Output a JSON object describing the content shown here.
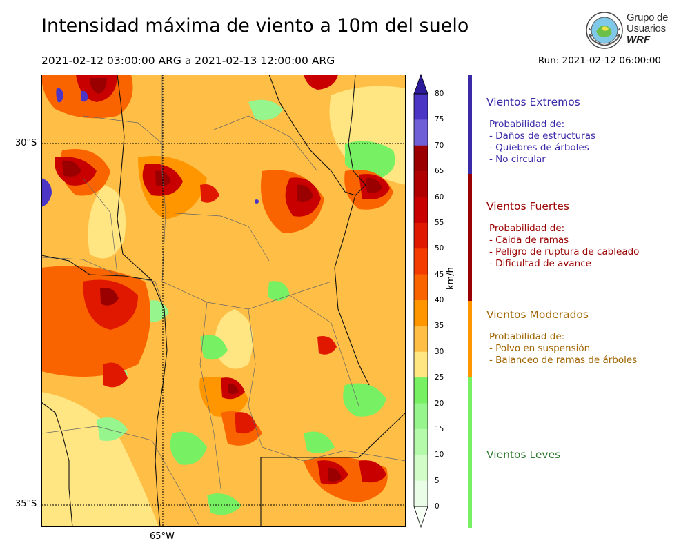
{
  "header": {
    "title": "Intensidad máxima de viento a 10m del suelo",
    "period": "2021-02-12 03:00:00 ARG  a  2021-02-13 12:00:00 ARG",
    "run": "Run: 2021-02-12 06:00:00"
  },
  "logo": {
    "line1": "Grupo de",
    "line2": "Usuarios",
    "line3": "WRF"
  },
  "map": {
    "lat_labels": [
      "30°S",
      "35°S"
    ],
    "lon_labels": [
      "65°W"
    ]
  },
  "colorbar": {
    "unit": "km/h",
    "ticks": [
      "80",
      "75",
      "70",
      "65",
      "60",
      "55",
      "50",
      "45",
      "40",
      "35",
      "30",
      "25",
      "20",
      "15",
      "10",
      "5",
      "0"
    ],
    "colors": [
      "#3c22b0",
      "#4a35c4",
      "#7060d8",
      "#9a0000",
      "#b00000",
      "#c80000",
      "#e01800",
      "#f53c00",
      "#fa6400",
      "#ff9600",
      "#ffbe46",
      "#ffe682",
      "#78f064",
      "#96f58c",
      "#b4faaa",
      "#d2fcc8",
      "#eafde6"
    ]
  },
  "legend": [
    {
      "title": "Vientos Extremos",
      "color": "#3a2aa8",
      "lines": [
        "Probabilidad de:",
        "- Daños de estructuras",
        "- Quiebres de árboles",
        "- No circular"
      ]
    },
    {
      "title": "Vientos Fuertes",
      "color": "#9a0000",
      "lines": [
        "Probabilidad de:",
        "- Caida de ramas",
        "- Peligro de ruptura de cableado",
        "- Dificultad de avance"
      ]
    },
    {
      "title": "Vientos Moderados",
      "color": "#a06400",
      "bar_color": "#ff9600",
      "lines": [
        "Probabilidad de:",
        "- Polvo en suspensión",
        "- Balanceo de ramas de árboles"
      ]
    },
    {
      "title": "Vientos Leves",
      "color": "#2f7a2f",
      "bar_color": "#78f064",
      "lines": []
    }
  ]
}
